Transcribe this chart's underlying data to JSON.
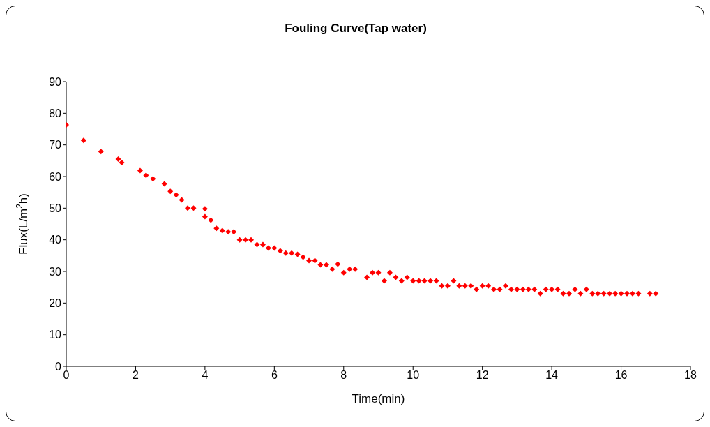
{
  "chart_data": {
    "type": "scatter",
    "title": "Fouling Curve(Tap water)",
    "xlabel": "Time(min)",
    "ylabel": "Flux(L/m$^{2}$h)",
    "x": [
      0,
      0.5,
      1,
      1.5,
      1.6,
      2.13,
      2.3,
      2.5,
      2.83,
      3,
      3.17,
      3.33,
      3.5,
      3.67,
      4,
      4,
      4.17,
      4.33,
      4.5,
      4.67,
      4.83,
      5,
      5.17,
      5.33,
      5.5,
      5.67,
      5.83,
      6,
      6.17,
      6.33,
      6.5,
      6.67,
      6.83,
      7,
      7.17,
      7.33,
      7.5,
      7.67,
      7.83,
      8,
      8.17,
      8.33,
      8.67,
      8.83,
      9,
      9.17,
      9.33,
      9.5,
      9.67,
      9.83,
      10,
      10.17,
      10.33,
      10.5,
      10.67,
      10.83,
      11,
      11.17,
      11.33,
      11.5,
      11.67,
      11.83,
      12,
      12.17,
      12.33,
      12.5,
      12.67,
      12.83,
      13,
      13.17,
      13.33,
      13.5,
      13.67,
      13.83,
      14,
      14.17,
      14.33,
      14.5,
      14.67,
      14.83,
      15,
      15.17,
      15.33,
      15.5,
      15.67,
      15.83,
      16,
      16.17,
      16.33,
      16.5,
      16.83,
      17
    ],
    "series": [
      {
        "color": "#ff0000",
        "values": [
          76.3,
          71.4,
          67.9,
          65.5,
          64.4,
          61.9,
          60.4,
          59.3,
          57.7,
          55.3,
          54.2,
          52.6,
          50,
          50,
          49.8,
          47.3,
          46.2,
          43.6,
          42.9,
          42.5,
          42.5,
          40,
          40,
          40,
          38.5,
          38.5,
          37.4,
          37.4,
          36.5,
          35.8,
          35.8,
          35.4,
          34.5,
          33.4,
          33.4,
          32.1,
          32.1,
          30.7,
          32.3,
          29.6,
          30.7,
          30.7,
          28.1,
          29.6,
          29.6,
          27,
          29.6,
          28.1,
          27,
          28.1,
          27,
          27,
          27,
          27,
          27,
          25.4,
          25.4,
          27,
          25.4,
          25.4,
          25.4,
          24.3,
          25.4,
          25.4,
          24.3,
          24.3,
          25.4,
          24.3,
          24.3,
          24.3,
          24.3,
          24.3,
          23,
          24.3,
          24.3,
          24.3,
          23,
          23,
          24.3,
          23,
          24.3,
          23,
          23,
          23,
          23,
          23,
          23,
          23,
          23,
          23,
          23,
          23
        ]
      }
    ],
    "xlim": [
      0,
      18
    ],
    "xticks": [
      0,
      2,
      4,
      6,
      8,
      10,
      12,
      14,
      16,
      18
    ],
    "ylim": [
      0,
      90
    ],
    "yticks": [
      0,
      10,
      20,
      30,
      40,
      50,
      60,
      70,
      80,
      90
    ],
    "marker": "diamond",
    "grid": false,
    "legend": false
  }
}
